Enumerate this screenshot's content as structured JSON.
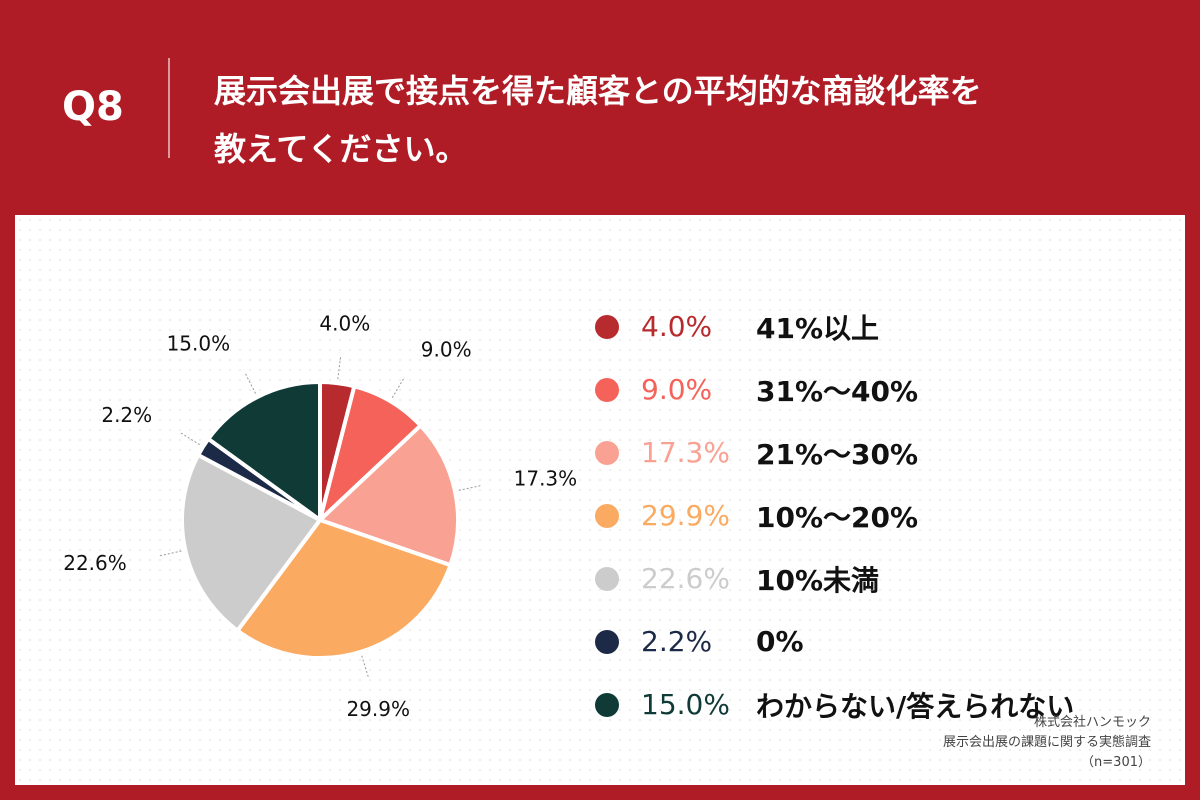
{
  "header": {
    "q_label": "Q8",
    "question_line1": "展示会出展で接点を得た顧客との平均的な商談化率を",
    "question_line2": "教えてください。"
  },
  "colors": {
    "header_bg": "#b01c26",
    "panel_bg": "#ffffff"
  },
  "chart_data": {
    "type": "pie",
    "title": "",
    "slices": [
      {
        "label": "41%以上",
        "value": 4.0,
        "value_label": "4.0%",
        "color": "#b72a2e"
      },
      {
        "label": "31%〜40%",
        "value": 9.0,
        "value_label": "9.0%",
        "color": "#f4625a"
      },
      {
        "label": "21%〜30%",
        "value": 17.3,
        "value_label": "17.3%",
        "color": "#f9a293"
      },
      {
        "label": "10%〜20%",
        "value": 29.9,
        "value_label": "29.9%",
        "color": "#fbaa62"
      },
      {
        "label": "10%未満",
        "value": 22.6,
        "value_label": "22.6%",
        "color": "#cccccc"
      },
      {
        "label": "0%",
        "value": 2.2,
        "value_label": "2.2%",
        "color": "#1c2a47"
      },
      {
        "label": "わからない/答えられない",
        "value": 15.0,
        "value_label": "15.0%",
        "color": "#0f3a36"
      }
    ],
    "legend_position": "right",
    "start_angle": "top",
    "direction": "clockwise"
  },
  "source": {
    "line1": "株式会社ハンモック",
    "line2": "展示会出展の課題に関する実態調査",
    "line3": "（n=301）"
  }
}
